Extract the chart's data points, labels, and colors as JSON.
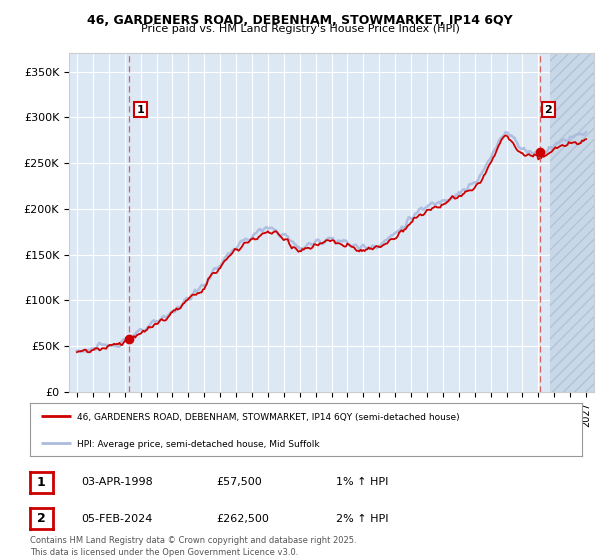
{
  "title1": "46, GARDENERS ROAD, DEBENHAM, STOWMARKET, IP14 6QY",
  "title2": "Price paid vs. HM Land Registry's House Price Index (HPI)",
  "ylim": [
    0,
    370000
  ],
  "xlim_left": 1994.5,
  "xlim_right": 2027.5,
  "yticks": [
    0,
    50000,
    100000,
    150000,
    200000,
    250000,
    300000,
    350000
  ],
  "ytick_labels": [
    "£0",
    "£50K",
    "£100K",
    "£150K",
    "£200K",
    "£250K",
    "£300K",
    "£350K"
  ],
  "purchase_marker_color": "#cc0000",
  "hpi_line_color": "#aabbdd",
  "price_line_color": "#cc0000",
  "point1_date": 1998.25,
  "point1_price": 57500,
  "point2_date": 2024.09,
  "point2_price": 262500,
  "legend_line1": "46, GARDENERS ROAD, DEBENHAM, STOWMARKET, IP14 6QY (semi-detached house)",
  "legend_line2": "HPI: Average price, semi-detached house, Mid Suffolk",
  "table_row1": [
    "1",
    "03-APR-1998",
    "£57,500",
    "1% ↑ HPI"
  ],
  "table_row2": [
    "2",
    "05-FEB-2024",
    "£262,500",
    "2% ↑ HPI"
  ],
  "footer": "Contains HM Land Registry data © Crown copyright and database right 2025.\nThis data is licensed under the Open Government Licence v3.0.",
  "bg_color": "#ffffff",
  "plot_bg_color": "#dde8f5",
  "grid_color": "#ffffff",
  "hatch_color": "#c8d8e8"
}
